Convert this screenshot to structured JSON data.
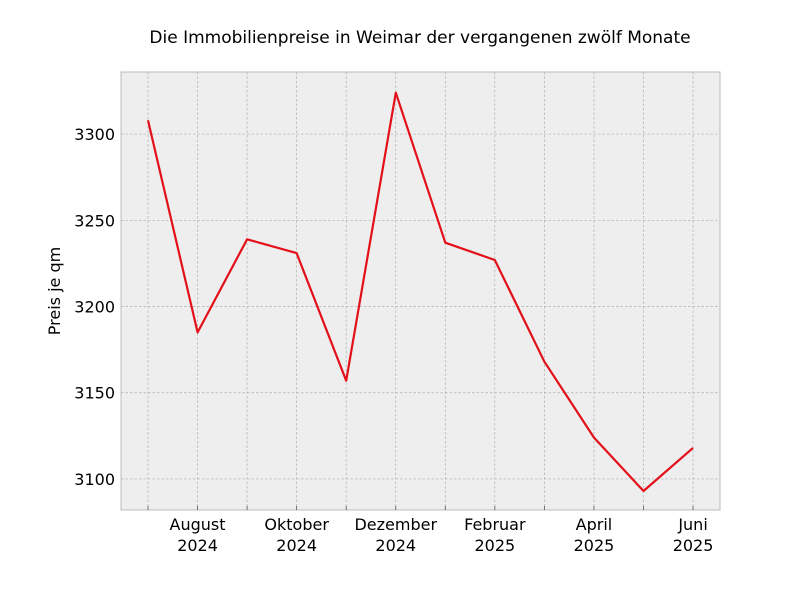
{
  "chart_data": {
    "type": "line",
    "title": "Die Immobilienpreise in Weimar der vergangenen zwölf Monate",
    "xlabel": "",
    "ylabel": "Preis je qm",
    "x": [
      "2024-07",
      "2024-08",
      "2024-09",
      "2024-10",
      "2024-11",
      "2024-12",
      "2025-01",
      "2025-02",
      "2025-03",
      "2025-04",
      "2025-05",
      "2025-06"
    ],
    "series": [
      {
        "values": [
          3308,
          3185,
          3239,
          3231,
          3157,
          3324,
          3237,
          3227,
          3168,
          3124,
          3093,
          3118
        ]
      }
    ],
    "xticks": [
      {
        "x": "2024-08",
        "line1": "August",
        "line2": "2024"
      },
      {
        "x": "2024-10",
        "line1": "Oktober",
        "line2": "2024"
      },
      {
        "x": "2024-12",
        "line1": "Dezember",
        "line2": "2024"
      },
      {
        "x": "2025-02",
        "line1": "Februar",
        "line2": "2025"
      },
      {
        "x": "2025-04",
        "line1": "April",
        "line2": "2025"
      },
      {
        "x": "2025-06",
        "line1": "Juni",
        "line2": "2025"
      }
    ],
    "yticks": [
      3100,
      3150,
      3200,
      3250,
      3300
    ],
    "ylim": [
      3082,
      3336
    ],
    "grid": true,
    "colors": {
      "line": "#e3101a",
      "background": "#eeeeee",
      "grid": "#b0b0b0"
    }
  }
}
